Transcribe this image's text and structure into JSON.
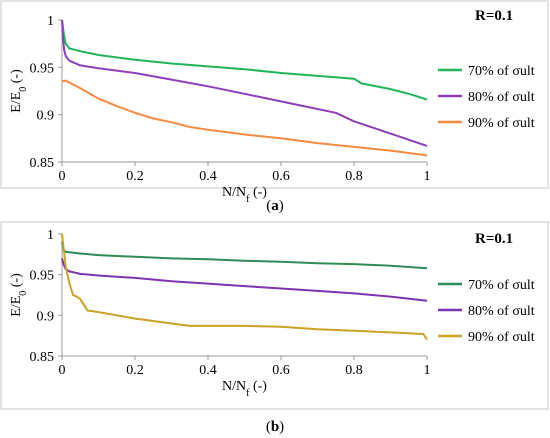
{
  "chart_data": [
    {
      "type": "line",
      "label": "(a)",
      "annotation": "R=0.1",
      "xlabel": "N/N_f (-)",
      "ylabel": "E/E_0 (-)",
      "xlim": [
        0,
        1
      ],
      "ylim": [
        0.85,
        1
      ],
      "x_ticks": [
        "0",
        "0.2",
        "0.4",
        "0.6",
        "0.8",
        "1"
      ],
      "y_ticks": [
        "0.85",
        "0.9",
        "0.95",
        "1"
      ],
      "legend_position": "right",
      "grid": false,
      "series": [
        {
          "name": "70% of σult",
          "color": "#21b45a",
          "x": [
            0,
            0.002,
            0.005,
            0.01,
            0.02,
            0.05,
            0.1,
            0.2,
            0.3,
            0.4,
            0.5,
            0.6,
            0.7,
            0.8,
            0.82,
            0.9,
            0.95,
            1.0
          ],
          "y": [
            1.0,
            0.995,
            0.985,
            0.975,
            0.97,
            0.967,
            0.963,
            0.958,
            0.954,
            0.951,
            0.948,
            0.944,
            0.941,
            0.938,
            0.933,
            0.927,
            0.922,
            0.916
          ]
        },
        {
          "name": "80% of σult",
          "color": "#8c3fb8",
          "x": [
            0,
            0.003,
            0.006,
            0.01,
            0.02,
            0.05,
            0.1,
            0.2,
            0.3,
            0.4,
            0.5,
            0.6,
            0.7,
            0.75,
            0.8,
            0.9,
            1.0
          ],
          "y": [
            1.0,
            0.98,
            0.968,
            0.962,
            0.957,
            0.952,
            0.949,
            0.944,
            0.937,
            0.93,
            0.922,
            0.914,
            0.906,
            0.902,
            0.893,
            0.88,
            0.867
          ]
        },
        {
          "name": "90% of σult",
          "color": "#f58a42",
          "x": [
            0,
            0.01,
            0.02,
            0.05,
            0.1,
            0.15,
            0.2,
            0.25,
            0.3,
            0.35,
            0.4,
            0.5,
            0.6,
            0.7,
            0.8,
            0.9,
            1.0
          ],
          "y": [
            0.935,
            0.936,
            0.934,
            0.928,
            0.917,
            0.909,
            0.902,
            0.896,
            0.892,
            0.887,
            0.884,
            0.879,
            0.875,
            0.87,
            0.866,
            0.862,
            0.857
          ]
        }
      ]
    },
    {
      "type": "line",
      "label": "(b)",
      "annotation": "R=0.1",
      "xlabel": "N/N_f (-)",
      "ylabel": "E/E_0 (-)",
      "xlim": [
        0,
        1
      ],
      "ylim": [
        0.85,
        1
      ],
      "x_ticks": [
        "0",
        "0.2",
        "0.4",
        "0.6",
        "0.8",
        "1"
      ],
      "y_ticks": [
        "0.85",
        "0.9",
        "0.95",
        "1"
      ],
      "legend_position": "right",
      "grid": false,
      "series": [
        {
          "name": "70% of σult",
          "color": "#2e8b57",
          "x": [
            0,
            0.005,
            0.01,
            0.05,
            0.1,
            0.2,
            0.3,
            0.4,
            0.5,
            0.6,
            0.7,
            0.8,
            0.9,
            1.0
          ],
          "y": [
            0.99,
            0.98,
            0.978,
            0.976,
            0.974,
            0.972,
            0.97,
            0.969,
            0.967,
            0.966,
            0.964,
            0.963,
            0.961,
            0.958
          ]
        },
        {
          "name": "80% of σult",
          "color": "#7b35b0",
          "x": [
            0,
            0.005,
            0.01,
            0.02,
            0.05,
            0.1,
            0.2,
            0.3,
            0.4,
            0.5,
            0.6,
            0.7,
            0.8,
            0.9,
            1.0
          ],
          "y": [
            0.97,
            0.962,
            0.957,
            0.954,
            0.951,
            0.949,
            0.946,
            0.942,
            0.939,
            0.936,
            0.933,
            0.93,
            0.927,
            0.923,
            0.918
          ]
        },
        {
          "name": "90% of σult",
          "color": "#c9a227",
          "x": [
            0,
            0.01,
            0.02,
            0.03,
            0.04,
            0.05,
            0.06,
            0.07,
            0.1,
            0.15,
            0.2,
            0.25,
            0.3,
            0.35,
            0.5,
            0.6,
            0.7,
            0.8,
            0.9,
            0.99,
            1.0
          ],
          "y": [
            1.0,
            0.96,
            0.94,
            0.925,
            0.923,
            0.92,
            0.913,
            0.906,
            0.904,
            0.9,
            0.896,
            0.893,
            0.89,
            0.887,
            0.887,
            0.886,
            0.883,
            0.881,
            0.879,
            0.877,
            0.87
          ]
        }
      ]
    }
  ]
}
